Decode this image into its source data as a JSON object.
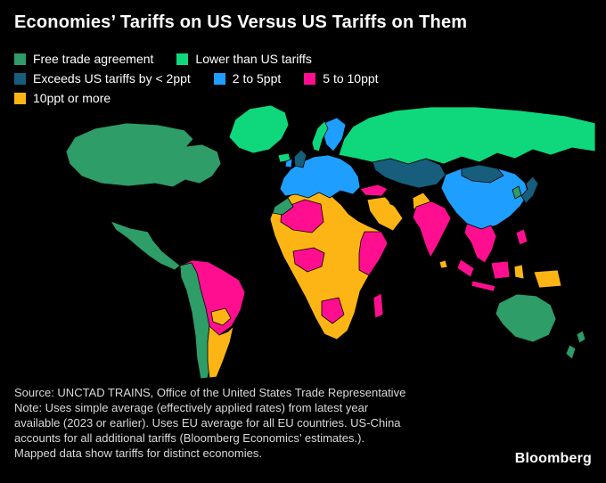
{
  "title": "Economies’ Tariffs on US Versus US Tariffs on Them",
  "legend": {
    "rows": [
      [
        {
          "key": "fta",
          "label": "Free trade agreement",
          "color": "#2e9d68"
        },
        {
          "key": "lower",
          "label": "Lower than US tariffs",
          "color": "#0ed87b"
        }
      ],
      [
        {
          "key": "lt2",
          "label": "Exceeds US tariffs by < 2ppt",
          "color": "#175d7c"
        },
        {
          "key": "2to5",
          "label": "2 to 5ppt",
          "color": "#1e9fff"
        },
        {
          "key": "5to10",
          "label": "5 to 10ppt",
          "color": "#ff0f8f"
        }
      ],
      [
        {
          "key": "10plus",
          "label": "10ppt or more",
          "color": "#fcb514"
        }
      ]
    ]
  },
  "map": {
    "no_data_color": "#000000",
    "regions": {
      "greenland": "lower",
      "iceland": "lower",
      "canada": "fta",
      "alaska": null,
      "usa": null,
      "mexico-central-america": "fta",
      "brazil-venezuela": "5to10",
      "andes-chile": "fta",
      "bolivia-paraguay": "10plus",
      "argentina": "10plus",
      "africa-main": "10plus",
      "northwest-africa": "5to10",
      "morocco": "fta",
      "west-africa-coast": "5to10",
      "east-africa": "5to10",
      "southern-africa-patch": "5to10",
      "madagascar": "5to10",
      "european-union": "2to5",
      "scandinavia-eu": "2to5",
      "norway": "lower",
      "united-kingdom": "lt2",
      "ireland": "2to5",
      "turkey": "5to10",
      "russia": "lower",
      "central-asia": "lt2",
      "china": "2to5",
      "mongolia": "lt2",
      "iran": null,
      "pakistan": "10plus",
      "arabian-peninsula": "10plus",
      "india": "5to10",
      "sri-lanka": "10plus",
      "mainland-southeast-asia": "5to10",
      "philippines": "5to10",
      "sumatra": "5to10",
      "java": "5to10",
      "borneo": "5to10",
      "sulawesi": "10plus",
      "new-guinea": "10plus",
      "japan": "lt2",
      "south-korea": "fta",
      "australia": "fta",
      "new-zealand": "fta"
    }
  },
  "source_lines": [
    "Source: UNCTAD TRAINS, Office of the United States Trade Representative",
    "Note: Uses simple average (effectively applied rates) from latest year",
    "available (2023 or earlier). Uses EU average for all EU countries. US-China",
    "accounts for all additional tariffs (Bloomberg Economics’ estimates.).",
    "Mapped data show tariffs for distinct economies."
  ],
  "logo": "Bloomberg"
}
